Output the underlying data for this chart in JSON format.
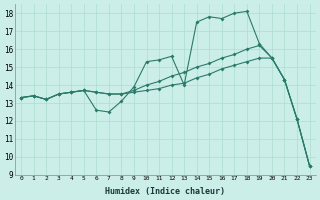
{
  "xlabel": "Humidex (Indice chaleur)",
  "bg_color": "#cceee8",
  "grid_color": "#aaddcc",
  "line_color": "#2a7a6a",
  "xlim": [
    -0.5,
    23.5
  ],
  "ylim": [
    9,
    18.5
  ],
  "yticks": [
    9,
    10,
    11,
    12,
    13,
    14,
    15,
    16,
    17,
    18
  ],
  "xticks": [
    0,
    1,
    2,
    3,
    4,
    5,
    6,
    7,
    8,
    9,
    10,
    11,
    12,
    13,
    14,
    15,
    16,
    17,
    18,
    19,
    20,
    21,
    22,
    23
  ],
  "line1_x": [
    0,
    1,
    2,
    3,
    4,
    5,
    6,
    7,
    8,
    9,
    10,
    11,
    12,
    13,
    14,
    15,
    16,
    17,
    18,
    19,
    20,
    21,
    22,
    23
  ],
  "line1_y": [
    13.3,
    13.4,
    13.2,
    13.5,
    13.6,
    13.7,
    12.6,
    12.5,
    13.1,
    13.9,
    15.3,
    15.4,
    15.6,
    14.0,
    17.5,
    17.8,
    17.7,
    18.0,
    18.1,
    16.3,
    15.5,
    14.3,
    12.1,
    9.5
  ],
  "line2_x": [
    0,
    1,
    2,
    3,
    4,
    5,
    6,
    7,
    8,
    9,
    10,
    11,
    12,
    13,
    14,
    15,
    16,
    17,
    18,
    19,
    20,
    21,
    22,
    23
  ],
  "line2_y": [
    13.3,
    13.4,
    13.2,
    13.5,
    13.6,
    13.7,
    13.6,
    13.5,
    13.5,
    13.6,
    13.7,
    13.8,
    14.0,
    14.1,
    14.4,
    14.6,
    14.9,
    15.1,
    15.3,
    15.5,
    15.5,
    14.3,
    12.1,
    9.5
  ],
  "line3_x": [
    0,
    1,
    2,
    3,
    4,
    5,
    6,
    7,
    8,
    9,
    10,
    11,
    12,
    13,
    14,
    15,
    16,
    17,
    18,
    19,
    20,
    21,
    22,
    23
  ],
  "line3_y": [
    13.3,
    13.4,
    13.2,
    13.5,
    13.6,
    13.7,
    13.6,
    13.5,
    13.5,
    13.7,
    14.0,
    14.2,
    14.5,
    14.7,
    15.0,
    15.2,
    15.5,
    15.7,
    16.0,
    16.2,
    15.5,
    14.3,
    12.1,
    9.5
  ]
}
